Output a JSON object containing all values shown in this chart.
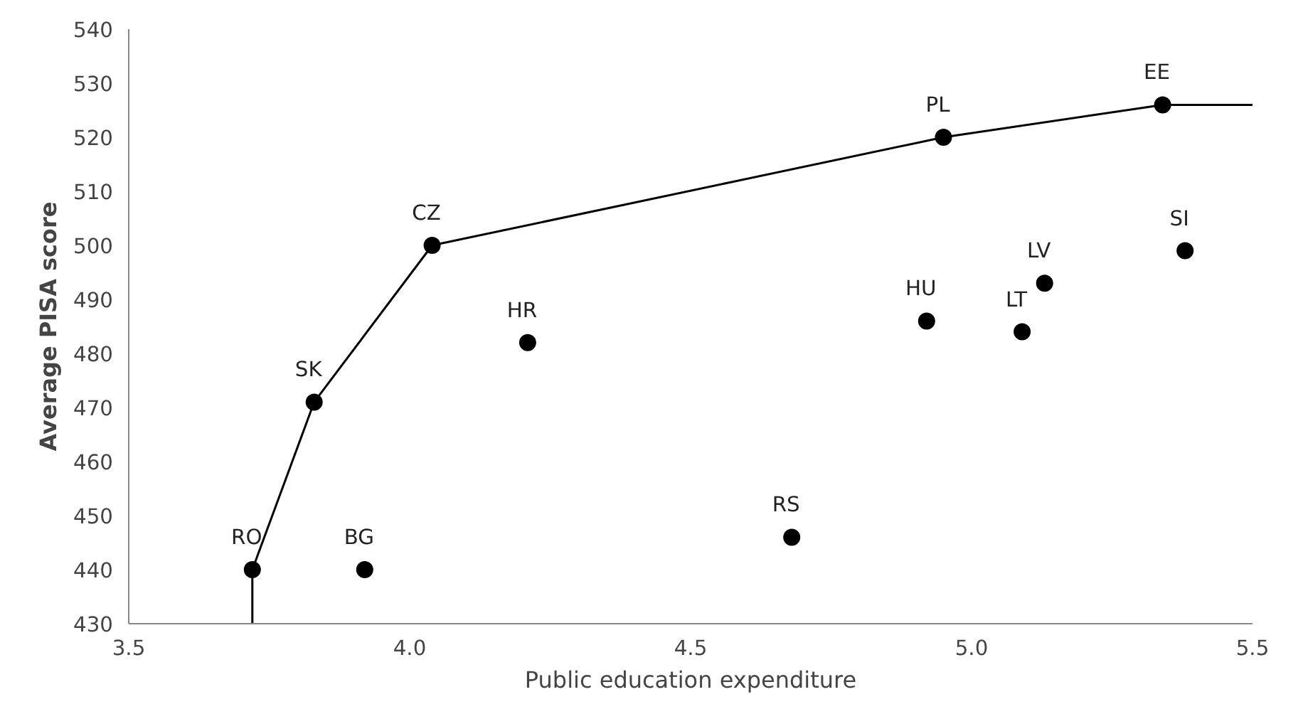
{
  "chart_data": {
    "type": "scatter",
    "xlabel": "Public education expenditure",
    "ylabel": "Average PISA score",
    "xlim": [
      3.5,
      5.5
    ],
    "xticks": [
      3.5,
      {
        "value": 4.0,
        "label": "4.0"
      },
      4.5,
      {
        "value": 5.0,
        "label": "5.0"
      },
      5.5
    ],
    "ylim": [
      430,
      540
    ],
    "yticks": [
      430,
      440,
      450,
      460,
      470,
      480,
      490,
      500,
      510,
      520,
      530,
      540
    ],
    "grid": false,
    "series": [
      {
        "type": "line",
        "color": "#000000",
        "marker": "none",
        "x": [
          3.72,
          3.72,
          3.83,
          4.04,
          4.95,
          5.34,
          5.5
        ],
        "values": [
          430,
          440,
          471,
          500,
          520,
          526,
          526
        ]
      },
      {
        "color": "#000000",
        "marker": "circle",
        "x": [
          3.72,
          3.92,
          3.83,
          4.04,
          4.21,
          4.68,
          4.92,
          4.95,
          5.09,
          5.13,
          5.34,
          5.38
        ],
        "values": [
          440,
          440,
          471,
          500,
          482,
          446,
          486,
          520,
          484,
          493,
          526,
          499
        ]
      }
    ],
    "annotations": [
      {
        "text": "RO",
        "x": 3.72,
        "y": 440
      },
      {
        "text": "BG",
        "x": 3.92,
        "y": 440
      },
      {
        "text": "SK",
        "x": 3.83,
        "y": 471
      },
      {
        "text": "CZ",
        "x": 4.04,
        "y": 500
      },
      {
        "text": "HR",
        "x": 4.21,
        "y": 482
      },
      {
        "text": "RS",
        "x": 4.68,
        "y": 446
      },
      {
        "text": "HU",
        "x": 4.92,
        "y": 486
      },
      {
        "text": "PL",
        "x": 4.95,
        "y": 520
      },
      {
        "text": "LT",
        "x": 5.09,
        "y": 484
      },
      {
        "text": "LV",
        "x": 5.13,
        "y": 493
      },
      {
        "text": "EE",
        "x": 5.34,
        "y": 526
      },
      {
        "text": "SI",
        "x": 5.38,
        "y": 499
      }
    ]
  }
}
